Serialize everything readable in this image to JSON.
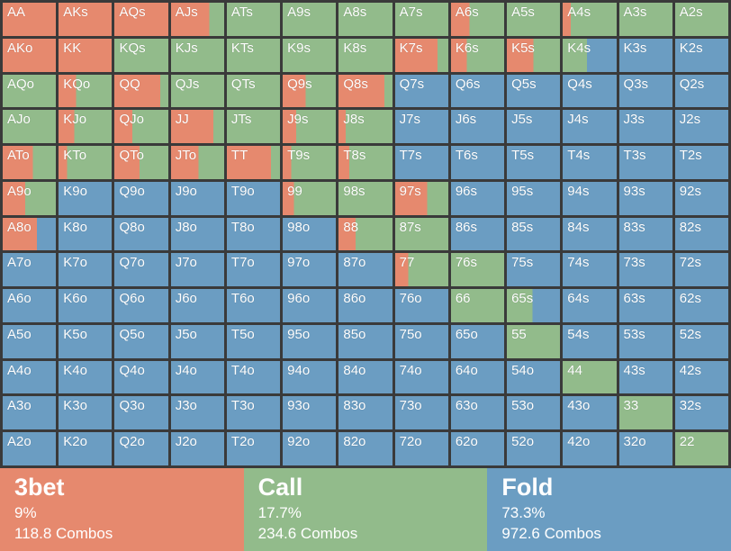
{
  "colors": {
    "threebet": "#E6896E",
    "call": "#92BB8B",
    "fold": "#6B9DC2",
    "background": "#3A3A3A",
    "label_text": "#FFFFFF"
  },
  "grid": {
    "note": "Each cell is [hand, threebet_pct, call_pct]; fold_pct = 100 - threebet - call. Segments drawn left-to-right: 3bet (red), call (green), fold (blue).",
    "rows": [
      [
        [
          "AA",
          100,
          0
        ],
        [
          "AKs",
          100,
          0
        ],
        [
          "AQs",
          100,
          0
        ],
        [
          "AJs",
          72,
          28
        ],
        [
          "ATs",
          0,
          100
        ],
        [
          "A9s",
          0,
          100
        ],
        [
          "A8s",
          0,
          100
        ],
        [
          "A7s",
          0,
          100
        ],
        [
          "A6s",
          35,
          65
        ],
        [
          "A5s",
          0,
          100
        ],
        [
          "A4s",
          15,
          85
        ],
        [
          "A3s",
          0,
          100
        ],
        [
          "A2s",
          0,
          100
        ]
      ],
      [
        [
          "AKo",
          100,
          0
        ],
        [
          "KK",
          100,
          0
        ],
        [
          "KQs",
          0,
          100
        ],
        [
          "KJs",
          0,
          100
        ],
        [
          "KTs",
          0,
          100
        ],
        [
          "K9s",
          0,
          100
        ],
        [
          "K8s",
          0,
          100
        ],
        [
          "K7s",
          80,
          20
        ],
        [
          "K6s",
          30,
          70
        ],
        [
          "K5s",
          50,
          50
        ],
        [
          "K4s",
          0,
          45
        ],
        [
          "K3s",
          0,
          0
        ],
        [
          "K2s",
          0,
          0
        ]
      ],
      [
        [
          "AQo",
          0,
          100
        ],
        [
          "KQo",
          33,
          67
        ],
        [
          "QQ",
          85,
          15
        ],
        [
          "QJs",
          0,
          100
        ],
        [
          "QTs",
          0,
          100
        ],
        [
          "Q9s",
          43,
          57
        ],
        [
          "Q8s",
          85,
          15
        ],
        [
          "Q7s",
          0,
          0
        ],
        [
          "Q6s",
          0,
          0
        ],
        [
          "Q5s",
          0,
          0
        ],
        [
          "Q4s",
          0,
          0
        ],
        [
          "Q3s",
          0,
          0
        ],
        [
          "Q2s",
          0,
          0
        ]
      ],
      [
        [
          "AJo",
          0,
          100
        ],
        [
          "KJo",
          30,
          70
        ],
        [
          "QJo",
          33,
          67
        ],
        [
          "JJ",
          80,
          20
        ],
        [
          "JTs",
          0,
          100
        ],
        [
          "J9s",
          25,
          75
        ],
        [
          "J8s",
          13,
          87
        ],
        [
          "J7s",
          0,
          0
        ],
        [
          "J6s",
          0,
          0
        ],
        [
          "J5s",
          0,
          0
        ],
        [
          "J4s",
          0,
          0
        ],
        [
          "J3s",
          0,
          0
        ],
        [
          "J2s",
          0,
          0
        ]
      ],
      [
        [
          "ATo",
          57,
          43
        ],
        [
          "KTo",
          16,
          84
        ],
        [
          "QTo",
          47,
          53
        ],
        [
          "JTo",
          52,
          48
        ],
        [
          "TT",
          83,
          17
        ],
        [
          "T9s",
          16,
          84
        ],
        [
          "T8s",
          20,
          80
        ],
        [
          "T7s",
          0,
          0
        ],
        [
          "T6s",
          0,
          0
        ],
        [
          "T5s",
          0,
          0
        ],
        [
          "T4s",
          0,
          0
        ],
        [
          "T3s",
          0,
          0
        ],
        [
          "T2s",
          0,
          0
        ]
      ],
      [
        [
          "A9o",
          42,
          58
        ],
        [
          "K9o",
          0,
          0
        ],
        [
          "Q9o",
          0,
          0
        ],
        [
          "J9o",
          0,
          0
        ],
        [
          "T9o",
          0,
          0
        ],
        [
          "99",
          21,
          79
        ],
        [
          "98s",
          0,
          100
        ],
        [
          "97s",
          60,
          40
        ],
        [
          "96s",
          0,
          0
        ],
        [
          "95s",
          0,
          0
        ],
        [
          "94s",
          0,
          0
        ],
        [
          "93s",
          0,
          0
        ],
        [
          "92s",
          0,
          0
        ]
      ],
      [
        [
          "A8o",
          64,
          0
        ],
        [
          "K8o",
          0,
          0
        ],
        [
          "Q8o",
          0,
          0
        ],
        [
          "J8o",
          0,
          0
        ],
        [
          "T8o",
          0,
          0
        ],
        [
          "98o",
          0,
          0
        ],
        [
          "88",
          32,
          68
        ],
        [
          "87s",
          0,
          100
        ],
        [
          "86s",
          0,
          0
        ],
        [
          "85s",
          0,
          0
        ],
        [
          "84s",
          0,
          0
        ],
        [
          "83s",
          0,
          0
        ],
        [
          "82s",
          0,
          0
        ]
      ],
      [
        [
          "A7o",
          0,
          0
        ],
        [
          "K7o",
          0,
          0
        ],
        [
          "Q7o",
          0,
          0
        ],
        [
          "J7o",
          0,
          0
        ],
        [
          "T7o",
          0,
          0
        ],
        [
          "97o",
          0,
          0
        ],
        [
          "87o",
          0,
          0
        ],
        [
          "77",
          25,
          75
        ],
        [
          "76s",
          0,
          100
        ],
        [
          "75s",
          0,
          0
        ],
        [
          "74s",
          0,
          0
        ],
        [
          "73s",
          0,
          0
        ],
        [
          "72s",
          0,
          0
        ]
      ],
      [
        [
          "A6o",
          0,
          0
        ],
        [
          "K6o",
          0,
          0
        ],
        [
          "Q6o",
          0,
          0
        ],
        [
          "J6o",
          0,
          0
        ],
        [
          "T6o",
          0,
          0
        ],
        [
          "96o",
          0,
          0
        ],
        [
          "86o",
          0,
          0
        ],
        [
          "76o",
          0,
          0
        ],
        [
          "66",
          0,
          100
        ],
        [
          "65s",
          0,
          48
        ],
        [
          "64s",
          0,
          0
        ],
        [
          "63s",
          0,
          0
        ],
        [
          "62s",
          0,
          0
        ]
      ],
      [
        [
          "A5o",
          0,
          0
        ],
        [
          "K5o",
          0,
          0
        ],
        [
          "Q5o",
          0,
          0
        ],
        [
          "J5o",
          0,
          0
        ],
        [
          "T5o",
          0,
          0
        ],
        [
          "95o",
          0,
          0
        ],
        [
          "85o",
          0,
          0
        ],
        [
          "75o",
          0,
          0
        ],
        [
          "65o",
          0,
          0
        ],
        [
          "55",
          0,
          100
        ],
        [
          "54s",
          0,
          0
        ],
        [
          "53s",
          0,
          0
        ],
        [
          "52s",
          0,
          0
        ]
      ],
      [
        [
          "A4o",
          0,
          0
        ],
        [
          "K4o",
          0,
          0
        ],
        [
          "Q4o",
          0,
          0
        ],
        [
          "J4o",
          0,
          0
        ],
        [
          "T4o",
          0,
          0
        ],
        [
          "94o",
          0,
          0
        ],
        [
          "84o",
          0,
          0
        ],
        [
          "74o",
          0,
          0
        ],
        [
          "64o",
          0,
          0
        ],
        [
          "54o",
          0,
          0
        ],
        [
          "44",
          0,
          100
        ],
        [
          "43s",
          0,
          0
        ],
        [
          "42s",
          0,
          0
        ]
      ],
      [
        [
          "A3o",
          0,
          0
        ],
        [
          "K3o",
          0,
          0
        ],
        [
          "Q3o",
          0,
          0
        ],
        [
          "J3o",
          0,
          0
        ],
        [
          "T3o",
          0,
          0
        ],
        [
          "93o",
          0,
          0
        ],
        [
          "83o",
          0,
          0
        ],
        [
          "73o",
          0,
          0
        ],
        [
          "63o",
          0,
          0
        ],
        [
          "53o",
          0,
          0
        ],
        [
          "43o",
          0,
          0
        ],
        [
          "33",
          0,
          100
        ],
        [
          "32s",
          0,
          0
        ]
      ],
      [
        [
          "A2o",
          0,
          0
        ],
        [
          "K2o",
          0,
          0
        ],
        [
          "Q2o",
          0,
          0
        ],
        [
          "J2o",
          0,
          0
        ],
        [
          "T2o",
          0,
          0
        ],
        [
          "92o",
          0,
          0
        ],
        [
          "82o",
          0,
          0
        ],
        [
          "72o",
          0,
          0
        ],
        [
          "62o",
          0,
          0
        ],
        [
          "52o",
          0,
          0
        ],
        [
          "42o",
          0,
          0
        ],
        [
          "32o",
          0,
          0
        ],
        [
          "22",
          0,
          100
        ]
      ]
    ]
  },
  "footer": {
    "actions": [
      {
        "key": "threebet",
        "label": "3bet",
        "percent": "9%",
        "combos": "118.8 Combos"
      },
      {
        "key": "call",
        "label": "Call",
        "percent": "17.7%",
        "combos": "234.6 Combos"
      },
      {
        "key": "fold",
        "label": "Fold",
        "percent": "73.3%",
        "combos": "972.6 Combos"
      }
    ]
  }
}
